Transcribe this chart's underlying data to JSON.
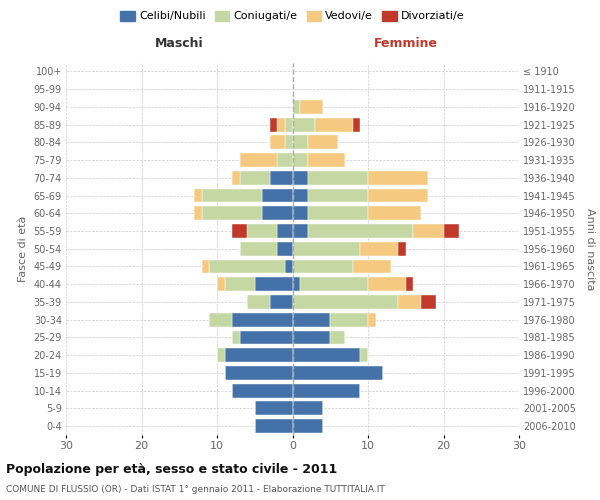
{
  "age_groups": [
    "0-4",
    "5-9",
    "10-14",
    "15-19",
    "20-24",
    "25-29",
    "30-34",
    "35-39",
    "40-44",
    "45-49",
    "50-54",
    "55-59",
    "60-64",
    "65-69",
    "70-74",
    "75-79",
    "80-84",
    "85-89",
    "90-94",
    "95-99",
    "100+"
  ],
  "birth_years": [
    "2006-2010",
    "2001-2005",
    "1996-2000",
    "1991-1995",
    "1986-1990",
    "1981-1985",
    "1976-1980",
    "1971-1975",
    "1966-1970",
    "1961-1965",
    "1956-1960",
    "1951-1955",
    "1946-1950",
    "1941-1945",
    "1936-1940",
    "1931-1935",
    "1926-1930",
    "1921-1925",
    "1916-1920",
    "1911-1915",
    "≤ 1910"
  ],
  "males": {
    "celibi": [
      5,
      5,
      8,
      9,
      9,
      7,
      8,
      3,
      5,
      1,
      2,
      2,
      4,
      4,
      3,
      0,
      0,
      0,
      0,
      0,
      0
    ],
    "coniugati": [
      0,
      0,
      0,
      0,
      1,
      1,
      3,
      3,
      4,
      10,
      5,
      4,
      8,
      8,
      4,
      2,
      1,
      1,
      0,
      0,
      0
    ],
    "vedovi": [
      0,
      0,
      0,
      0,
      0,
      0,
      0,
      0,
      1,
      1,
      0,
      0,
      1,
      1,
      1,
      5,
      2,
      1,
      0,
      0,
      0
    ],
    "divorziati": [
      0,
      0,
      0,
      0,
      0,
      0,
      0,
      0,
      0,
      0,
      0,
      2,
      0,
      0,
      0,
      0,
      0,
      1,
      0,
      0,
      0
    ]
  },
  "females": {
    "nubili": [
      4,
      4,
      9,
      12,
      9,
      5,
      5,
      0,
      1,
      0,
      0,
      2,
      2,
      2,
      2,
      0,
      0,
      0,
      0,
      0,
      0
    ],
    "coniugate": [
      0,
      0,
      0,
      0,
      1,
      2,
      5,
      14,
      9,
      8,
      9,
      14,
      8,
      8,
      8,
      2,
      2,
      3,
      1,
      0,
      0
    ],
    "vedove": [
      0,
      0,
      0,
      0,
      0,
      0,
      1,
      3,
      5,
      5,
      5,
      4,
      7,
      8,
      8,
      5,
      4,
      5,
      3,
      0,
      0
    ],
    "divorziate": [
      0,
      0,
      0,
      0,
      0,
      0,
      0,
      2,
      1,
      0,
      1,
      2,
      0,
      0,
      0,
      0,
      0,
      1,
      0,
      0,
      0
    ]
  },
  "colors": {
    "celibi": "#4472a8",
    "coniugati": "#c5d8a4",
    "vedovi": "#f5c97f",
    "divorziati": "#c0392b"
  },
  "title": "Popolazione per età, sesso e stato civile - 2011",
  "subtitle": "COMUNE DI FLUSSIO (OR) - Dati ISTAT 1° gennaio 2011 - Elaborazione TUTTITALIA.IT",
  "xlabel_left": "Maschi",
  "xlabel_right": "Femmine",
  "ylabel_left": "Fasce di età",
  "ylabel_right": "Anni di nascita",
  "xlim": 30,
  "legend_labels": [
    "Celibi/Nubili",
    "Coniugati/e",
    "Vedovi/e",
    "Divorziati/e"
  ],
  "background_color": "#ffffff",
  "grid_color": "#cccccc"
}
